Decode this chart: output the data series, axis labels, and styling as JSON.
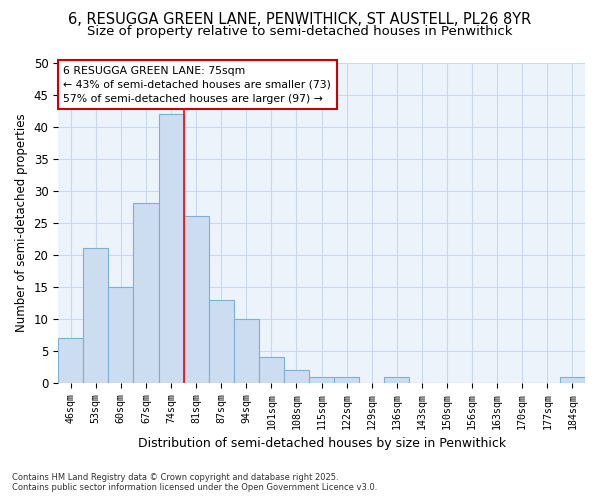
{
  "title1": "6, RESUGGA GREEN LANE, PENWITHICK, ST AUSTELL, PL26 8YR",
  "title2": "Size of property relative to semi-detached houses in Penwithick",
  "xlabel": "Distribution of semi-detached houses by size in Penwithick",
  "ylabel": "Number of semi-detached properties",
  "categories": [
    "46sqm",
    "53sqm",
    "60sqm",
    "67sqm",
    "74sqm",
    "81sqm",
    "87sqm",
    "94sqm",
    "101sqm",
    "108sqm",
    "115sqm",
    "122sqm",
    "129sqm",
    "136sqm",
    "143sqm",
    "150sqm",
    "156sqm",
    "163sqm",
    "170sqm",
    "177sqm",
    "184sqm"
  ],
  "values": [
    7,
    21,
    15,
    28,
    42,
    26,
    13,
    10,
    4,
    2,
    1,
    1,
    0,
    1,
    0,
    0,
    0,
    0,
    0,
    0,
    1
  ],
  "bar_color": "#ccddf2",
  "bar_edge_color": "#7bafd4",
  "red_line_x": 4.5,
  "ylim": [
    0,
    50
  ],
  "yticks": [
    0,
    5,
    10,
    15,
    20,
    25,
    30,
    35,
    40,
    45,
    50
  ],
  "annotation_text": "6 RESUGGA GREEN LANE: 75sqm\n← 43% of semi-detached houses are smaller (73)\n57% of semi-detached houses are larger (97) →",
  "annotation_box_color": "#ffffff",
  "annotation_box_edge": "#cc0000",
  "background_color": "#ffffff",
  "plot_bg_color": "#edf3fb",
  "footer_line1": "Contains HM Land Registry data © Crown copyright and database right 2025.",
  "footer_line2": "Contains public sector information licensed under the Open Government Licence v3.0.",
  "grid_color": "#c8d8ee",
  "title1_fontsize": 10.5,
  "title2_fontsize": 9.5,
  "xlabel_fontsize": 9,
  "ylabel_fontsize": 8.5
}
